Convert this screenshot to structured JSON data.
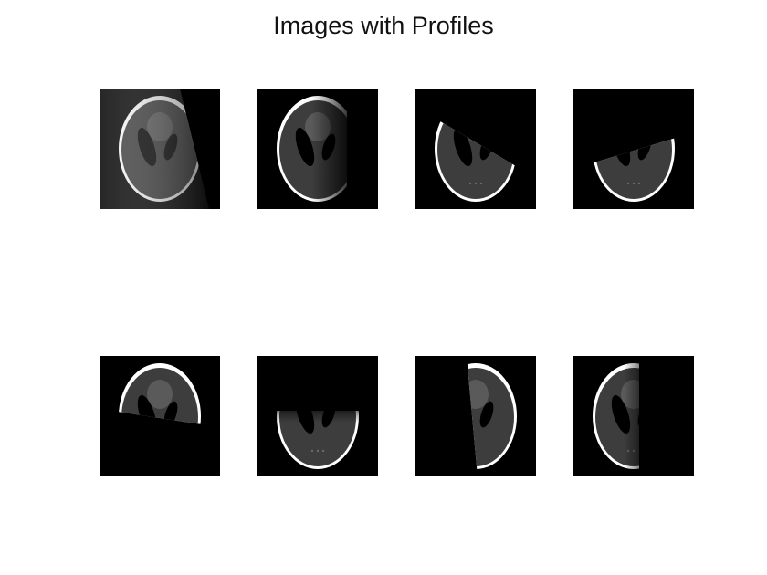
{
  "figure": {
    "title": "Images with Profiles"
  },
  "panels": [
    {
      "row": 1,
      "col": 1,
      "visible_side": "left",
      "cut_angle_deg": -20
    },
    {
      "row": 1,
      "col": 2,
      "visible_side": "left",
      "cut_angle_deg": 0
    },
    {
      "row": 1,
      "col": 3,
      "visible_side": "bottom-left",
      "cut_angle_deg": 30
    },
    {
      "row": 1,
      "col": 4,
      "visible_side": "bottom",
      "cut_angle_deg": 65
    },
    {
      "row": 2,
      "col": 1,
      "visible_side": "top",
      "cut_angle_deg": 75
    },
    {
      "row": 2,
      "col": 2,
      "visible_side": "bottom",
      "cut_angle_deg": 90
    },
    {
      "row": 2,
      "col": 3,
      "visible_side": "right",
      "cut_angle_deg": -5
    },
    {
      "row": 2,
      "col": 4,
      "visible_side": "left",
      "cut_angle_deg": 0
    }
  ],
  "colors": {
    "background": "#000000",
    "skull": "#ffffff",
    "tissue": "#4a4a4a",
    "brain": "#3b3b3b",
    "ventricle": "#000000",
    "lesion": "#6a6a6a"
  }
}
